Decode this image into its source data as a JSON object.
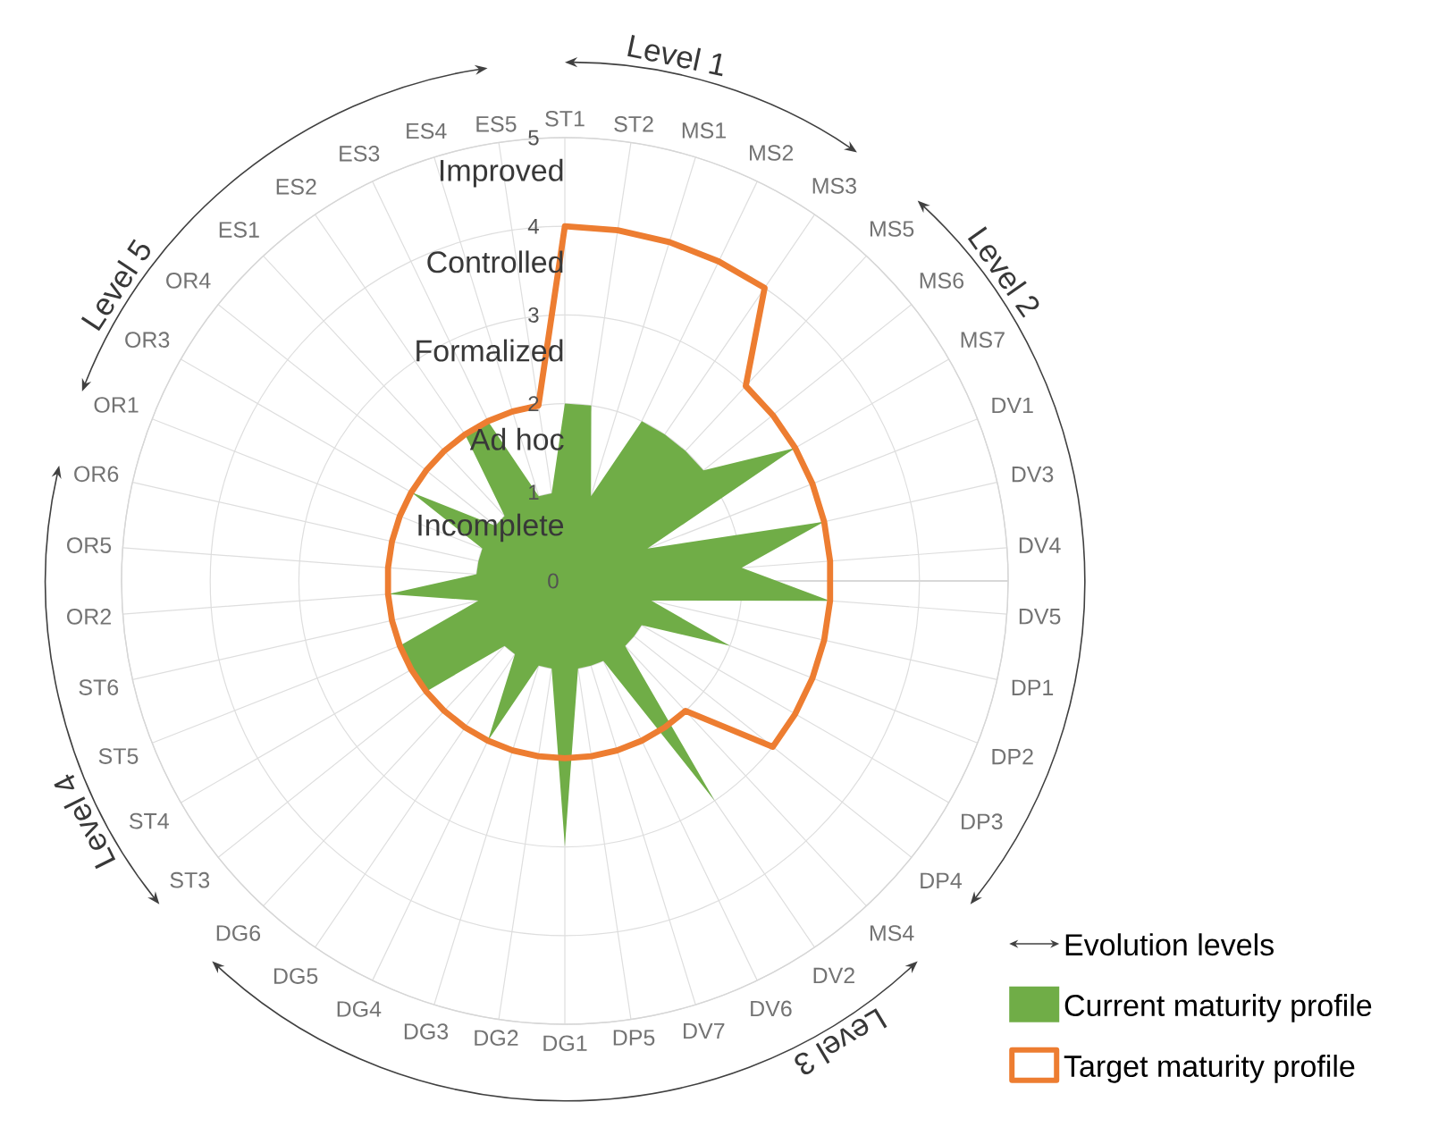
{
  "chart_data": {
    "type": "radar",
    "categories": [
      "ST1",
      "ST2",
      "MS1",
      "MS2",
      "MS3",
      "MS5",
      "MS6",
      "MS7",
      "DV1",
      "DV3",
      "DV4",
      "DV5",
      "DP1",
      "DP2",
      "DP3",
      "DP4",
      "MS4",
      "DV2",
      "DV6",
      "DV7",
      "DP5",
      "DG1",
      "DG2",
      "DG3",
      "DG4",
      "DG5",
      "DG6",
      "ST3",
      "ST4",
      "ST5",
      "ST6",
      "OR2",
      "OR5",
      "OR6",
      "OR1",
      "OR3",
      "OR4",
      "ES1",
      "ES2",
      "ES3",
      "ES4",
      "ES5"
    ],
    "series": [
      {
        "name": "Current maturity profile",
        "type": "area",
        "color": "#70ad47",
        "values": [
          2,
          2,
          1,
          2,
          2,
          2,
          2,
          3,
          1,
          3,
          2,
          3,
          1,
          2,
          1,
          1,
          1,
          3,
          1,
          1,
          1,
          3,
          1,
          1,
          2,
          1,
          1,
          2,
          2,
          2,
          1,
          2,
          1,
          1,
          1,
          2,
          1,
          1,
          2,
          2,
          1,
          1
        ]
      },
      {
        "name": "Target maturity profile",
        "color": "#ed7d31",
        "values": [
          4,
          4,
          4,
          4,
          4,
          3,
          3,
          3,
          3,
          3,
          3,
          3,
          3,
          3,
          3,
          3,
          2,
          2,
          2,
          2,
          2,
          2,
          2,
          2,
          2,
          2,
          2,
          2,
          2,
          2,
          2,
          2,
          2,
          2,
          2,
          2,
          2,
          2,
          2,
          2,
          2,
          2
        ]
      }
    ],
    "ylim": [
      0,
      5
    ],
    "yticks": [
      0,
      1,
      2,
      3,
      4,
      5
    ],
    "grid": true,
    "legend": "bottom right",
    "annotations": [
      "Incomplete",
      "Ad hoc",
      "Formalized",
      "Controlled",
      "Improved",
      {
        "text": "Level 1",
        "x": "ST1"
      },
      {
        "text": "Level 2",
        "x": "MS5"
      },
      {
        "text": "Level 3",
        "x": "MS4"
      },
      {
        "text": "Level 4",
        "x": "ST3"
      },
      {
        "text": "Level 5",
        "x": "OR1"
      },
      {
        "text": "Evolution levels"
      }
    ]
  }
}
